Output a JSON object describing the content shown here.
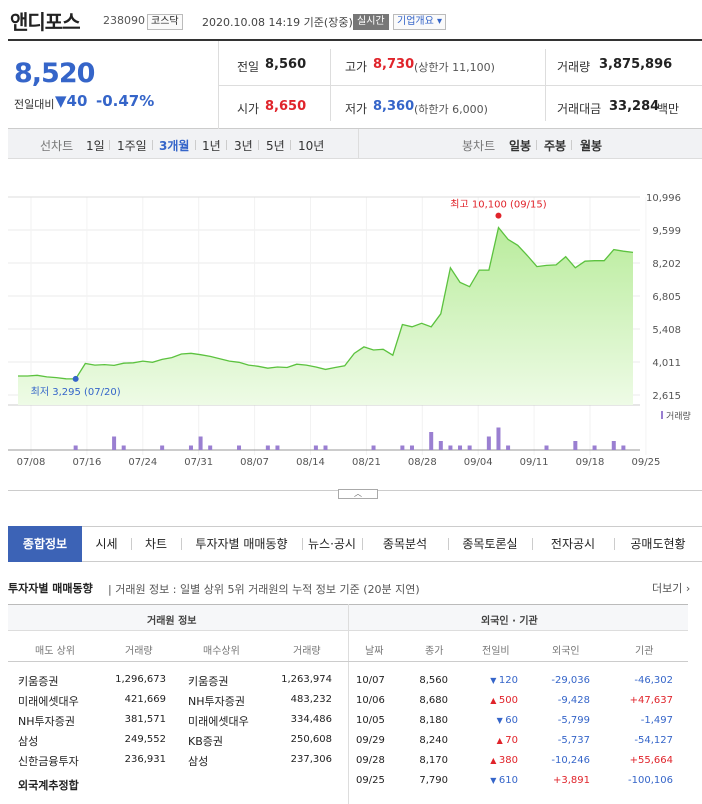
{
  "header": {
    "name": "앤디포스",
    "code": "238090",
    "market": "코스닥",
    "datetime": "2020.10.08 14:19 기준(장중)",
    "realtime": "실시간",
    "company_info": "기업개요"
  },
  "quote": {
    "price": "8,520",
    "change_label": "전일대비",
    "change": "40",
    "change_pct": "-0.47%",
    "prev_close_label": "전일",
    "prev_close": "8,560",
    "open_label": "시가",
    "open": "8,650",
    "high_label": "고가",
    "high": "8,730",
    "upper_limit": "(상한가 11,100)",
    "low_label": "저가",
    "low": "8,360",
    "lower_limit": "(하한가 6,000)",
    "volume_label": "거래량",
    "volume": "3,875,896",
    "amount_label": "거래대금",
    "amount": "33,284",
    "amount_unit": "백만"
  },
  "period_bar": {
    "line_label": "선차트",
    "line_periods": [
      "1일",
      "1주일",
      "3개월",
      "1년",
      "3년",
      "5년",
      "10년"
    ],
    "active": "3개월",
    "candle_label": "봉차트",
    "candle_periods": [
      "일봉",
      "주봉",
      "월봉"
    ]
  },
  "chart_data": {
    "type": "area",
    "y_ticks": [
      "10,996",
      "9,599",
      "8,202",
      "6,805",
      "5,408",
      "4,011",
      "2,615"
    ],
    "ylim": [
      2615,
      10996
    ],
    "x_ticks": [
      "07/08",
      "07/16",
      "07/24",
      "07/31",
      "08/07",
      "08/14",
      "08/21",
      "08/28",
      "09/04",
      "09/11",
      "09/18",
      "09/25"
    ],
    "max_annotation": "최고 10,100 (09/15)",
    "min_annotation": "최저 3,295 (07/20)",
    "volume_label": "거래량",
    "prices": [
      3420,
      3420,
      3450,
      3380,
      3350,
      3300,
      3295,
      3950,
      3880,
      3900,
      3870,
      3960,
      3980,
      4050,
      4000,
      4120,
      4200,
      4350,
      4380,
      4320,
      4250,
      4150,
      4050,
      4000,
      3880,
      3830,
      3750,
      3800,
      3780,
      3920,
      3880,
      3800,
      3700,
      3780,
      3850,
      4380,
      4650,
      4520,
      4550,
      4300,
      5600,
      5500,
      5650,
      5500,
      6050,
      8000,
      7380,
      7200,
      7900,
      7900,
      9700,
      9200,
      8950,
      8520,
      8050,
      8100,
      8120,
      8470,
      8000,
      8280,
      8300,
      8300,
      8770,
      8700,
      8650
    ],
    "volumes": [
      0,
      0,
      0,
      0,
      0,
      0,
      1,
      0,
      0,
      0,
      3,
      1,
      0,
      0,
      0,
      1,
      0,
      0,
      1,
      3,
      1,
      0,
      0,
      1,
      0,
      0,
      1,
      1,
      0,
      0,
      0,
      1,
      1,
      0,
      0,
      0,
      0,
      1,
      0,
      0,
      1,
      1,
      0,
      4,
      2,
      1,
      1,
      1,
      0,
      3,
      5,
      1,
      0,
      0,
      0,
      1,
      0,
      0,
      2,
      0,
      1,
      0,
      2,
      1,
      0
    ]
  },
  "tabs": [
    "종합정보",
    "시세",
    "차트",
    "투자자별 매매동향",
    "뉴스·공시",
    "종목분석",
    "종목토론실",
    "전자공시",
    "공매도현황"
  ],
  "active_tab": "종합정보",
  "investor": {
    "title": "투자자별 매매동향",
    "desc": "거래원 정보 : 일별 상위 5위 거래원의 누적 정보 기준 (20분 지연)",
    "more": "더보기",
    "brokers_title": "거래원 정보",
    "foreign_title": "외국인 · 기관",
    "broker_headers": [
      "매도 상위",
      "거래량",
      "매수상위",
      "거래량"
    ],
    "brokers": [
      [
        "키움증권",
        "1,296,673",
        "키움증권",
        "1,263,974"
      ],
      [
        "미래에셋대우",
        "421,669",
        "NH투자증권",
        "483,232"
      ],
      [
        "NH투자증권",
        "381,571",
        "미래에셋대우",
        "334,486"
      ],
      [
        "삼성",
        "249,552",
        "KB증권",
        "250,608"
      ],
      [
        "신한금융투자",
        "236,931",
        "삼성",
        "237,306"
      ]
    ],
    "foreign_total": "외국계추정합",
    "foreign_headers": [
      "날짜",
      "종가",
      "전일비",
      "외국인",
      "기관"
    ],
    "foreign_rows": [
      [
        "10/07",
        "8,560",
        "120",
        "-29,036",
        "-46,302",
        "down",
        "neg",
        "neg"
      ],
      [
        "10/06",
        "8,680",
        "500",
        "-9,428",
        "+47,637",
        "up",
        "neg",
        "pos"
      ],
      [
        "10/05",
        "8,180",
        "60",
        "-5,799",
        "-1,497",
        "down",
        "neg",
        "neg"
      ],
      [
        "09/29",
        "8,240",
        "70",
        "-5,737",
        "-54,127",
        "up",
        "neg",
        "neg"
      ],
      [
        "09/28",
        "8,170",
        "380",
        "-10,246",
        "+55,664",
        "up",
        "neg",
        "pos"
      ],
      [
        "09/25",
        "7,790",
        "610",
        "+3,891",
        "-100,106",
        "down",
        "pos",
        "neg"
      ]
    ]
  },
  "colors": {
    "up": "#e0242b",
    "down": "#3565c9",
    "accent": "#3c63b6",
    "line": "#5cc23f",
    "volume": "#9a7fd1"
  }
}
